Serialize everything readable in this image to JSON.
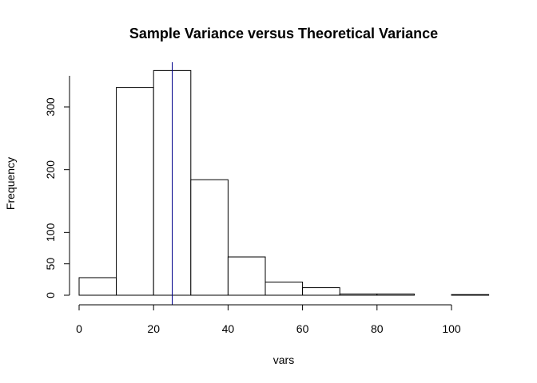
{
  "chart_data": {
    "type": "bar",
    "title": "Sample Variance versus Theoretical Variance",
    "xlabel": "vars",
    "ylabel": "Frequency",
    "bins": [
      {
        "from": 0,
        "to": 10,
        "count": 28
      },
      {
        "from": 10,
        "to": 20,
        "count": 331
      },
      {
        "from": 20,
        "to": 30,
        "count": 358
      },
      {
        "from": 30,
        "to": 40,
        "count": 184
      },
      {
        "from": 40,
        "to": 50,
        "count": 61
      },
      {
        "from": 50,
        "to": 60,
        "count": 21
      },
      {
        "from": 60,
        "to": 70,
        "count": 12
      },
      {
        "from": 70,
        "to": 80,
        "count": 2
      },
      {
        "from": 80,
        "to": 90,
        "count": 2
      },
      {
        "from": 90,
        "to": 100,
        "count": 0
      },
      {
        "from": 100,
        "to": 110,
        "count": 1
      }
    ],
    "xlim": [
      0,
      110
    ],
    "ylim": [
      0,
      350
    ],
    "x_ticks": [
      0,
      20,
      40,
      60,
      80,
      100
    ],
    "x_tick_labels": [
      "0",
      "20",
      "40",
      "60",
      "80",
      "100"
    ],
    "y_ticks": [
      0,
      50,
      100,
      200,
      300
    ],
    "y_tick_labels": [
      "0",
      "50",
      "100",
      "200",
      "300"
    ],
    "reference_line": {
      "x": 25,
      "color": "#00008b"
    },
    "bar_fill": "#ffffff",
    "bar_stroke": "#000000",
    "grid": false,
    "legend": "none"
  }
}
